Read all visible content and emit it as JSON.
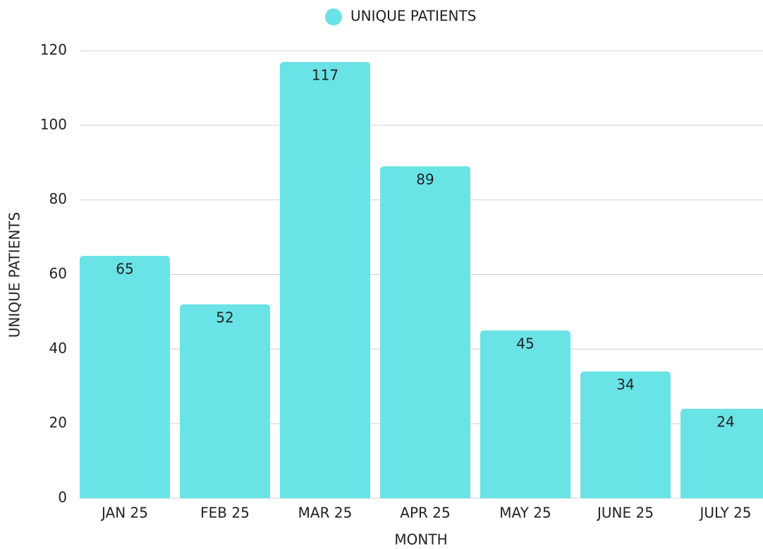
{
  "chart_data": {
    "type": "bar",
    "legend": "UNIQUE PATIENTS",
    "x_label": "MONTH",
    "y_label": "UNIQUE PATIENTS",
    "categories": [
      "JAN 25",
      "FEB 25",
      "MAR 25",
      "APR 25",
      "MAY 25",
      "JUNE 25",
      "JULY 25"
    ],
    "values": [
      65,
      52,
      117,
      89,
      45,
      34,
      24
    ],
    "color": "#6ae3e6",
    "ylim": [
      0,
      120
    ],
    "yticks": [
      0,
      20,
      40,
      60,
      80,
      100,
      120
    ],
    "grid": true,
    "legend_position": "top"
  }
}
